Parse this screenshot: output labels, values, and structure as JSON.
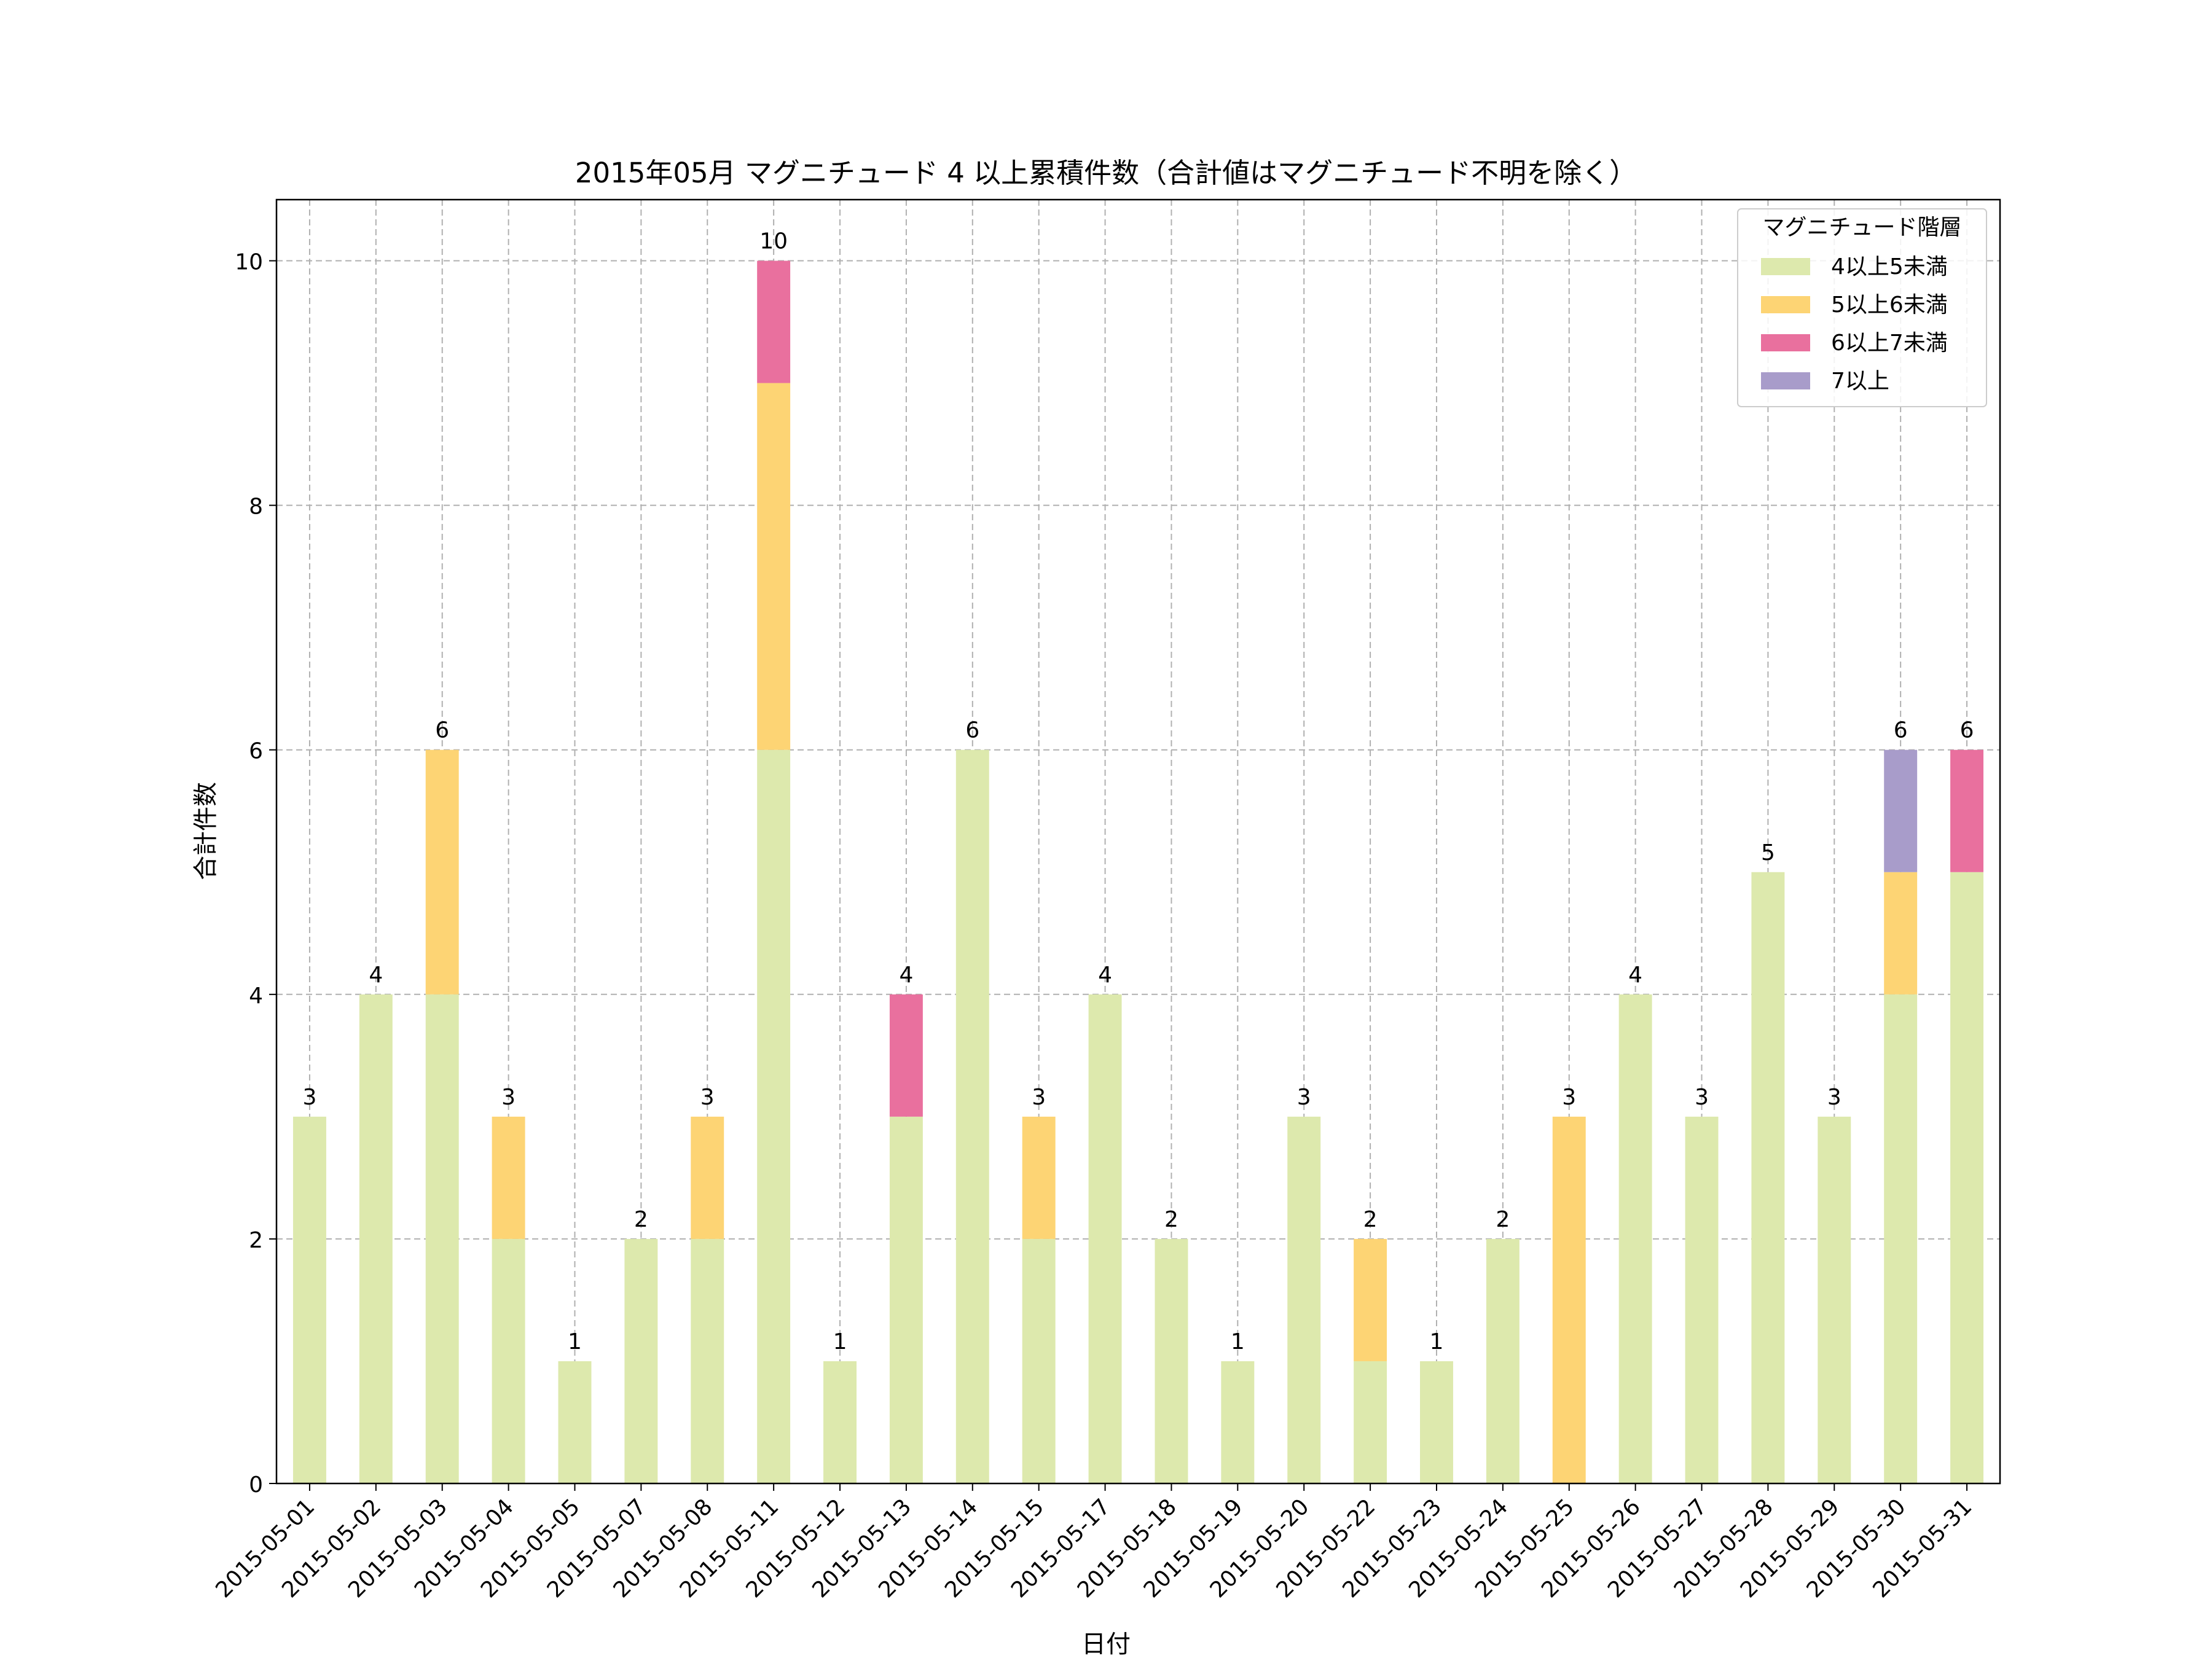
{
  "chart_data": {
    "type": "bar",
    "stacked": true,
    "title": "2015年05月 マグニチュード 4 以上累積件数（合計値はマグニチュード不明を除く）",
    "xlabel": "日付",
    "ylabel": "合計件数",
    "ylim": [
      0,
      10.5
    ],
    "yticks": [
      0,
      2,
      4,
      6,
      8,
      10
    ],
    "grid": true,
    "legend_title": "マグニチュード階層",
    "legend_position": "top-right",
    "categories": [
      "2015-05-01",
      "2015-05-02",
      "2015-05-03",
      "2015-05-04",
      "2015-05-05",
      "2015-05-07",
      "2015-05-08",
      "2015-05-11",
      "2015-05-12",
      "2015-05-13",
      "2015-05-14",
      "2015-05-15",
      "2015-05-17",
      "2015-05-18",
      "2015-05-19",
      "2015-05-20",
      "2015-05-22",
      "2015-05-23",
      "2015-05-24",
      "2015-05-25",
      "2015-05-26",
      "2015-05-27",
      "2015-05-28",
      "2015-05-29",
      "2015-05-30",
      "2015-05-31"
    ],
    "series": [
      {
        "name": "4以上5未満",
        "color": "#dde9ad",
        "values": [
          3,
          4,
          4,
          2,
          1,
          2,
          2,
          6,
          1,
          3,
          6,
          2,
          4,
          2,
          1,
          3,
          1,
          1,
          2,
          0,
          4,
          3,
          5,
          3,
          4,
          5
        ]
      },
      {
        "name": "5以上6未満",
        "color": "#fdd474",
        "values": [
          0,
          0,
          2,
          1,
          0,
          0,
          1,
          3,
          0,
          0,
          0,
          1,
          0,
          0,
          0,
          0,
          1,
          0,
          0,
          3,
          0,
          0,
          0,
          0,
          1,
          0
        ]
      },
      {
        "name": "6以上7未満",
        "color": "#e9709e",
        "values": [
          0,
          0,
          0,
          0,
          0,
          0,
          0,
          1,
          0,
          1,
          0,
          0,
          0,
          0,
          0,
          0,
          0,
          0,
          0,
          0,
          0,
          0,
          0,
          0,
          0,
          1
        ]
      },
      {
        "name": "7以上",
        "color": "#a89cca",
        "values": [
          0,
          0,
          0,
          0,
          0,
          0,
          0,
          0,
          0,
          0,
          0,
          0,
          0,
          0,
          0,
          0,
          0,
          0,
          0,
          0,
          0,
          0,
          0,
          0,
          1,
          0
        ]
      }
    ],
    "totals": [
      3,
      4,
      6,
      3,
      1,
      2,
      3,
      10,
      1,
      4,
      6,
      3,
      4,
      2,
      1,
      3,
      2,
      1,
      2,
      3,
      4,
      3,
      5,
      3,
      6,
      6
    ]
  }
}
